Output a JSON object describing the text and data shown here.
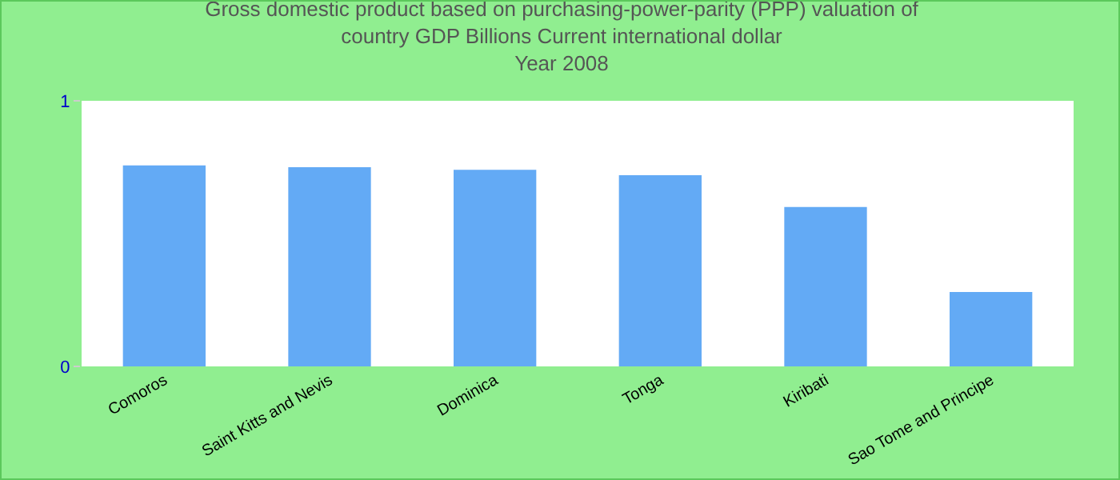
{
  "chart_data": {
    "type": "bar",
    "title": "Gross domestic product based on purchasing-power-parity (PPP) valuation of country GDP Billions Current international dollar",
    "subtitle": "Year 2008",
    "categories": [
      "Comoros",
      "Saint Kitts and Nevis",
      "Dominica",
      "Tonga",
      "Kiribati",
      "Sao Tome and Principe"
    ],
    "values": [
      0.757,
      0.75,
      0.74,
      0.72,
      0.6,
      0.28
    ],
    "color": "#63aaf5",
    "ylim": [
      0,
      1
    ],
    "yticks": [
      0,
      1
    ],
    "grid": false
  }
}
